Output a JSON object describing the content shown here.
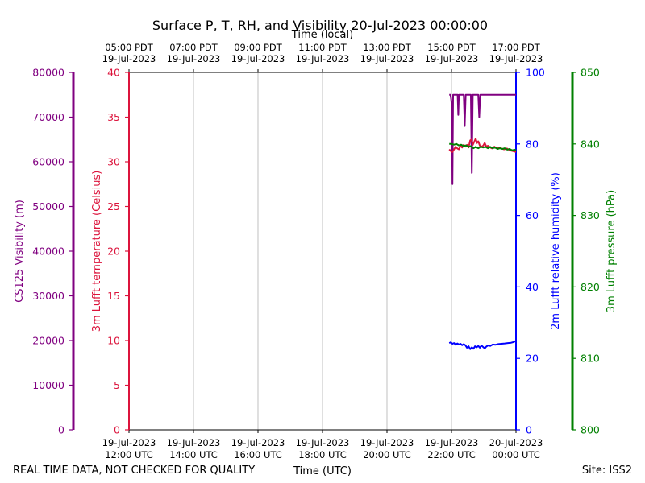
{
  "chart_data": {
    "type": "line",
    "title": "Surface P, T, RH, and Visibility 20-Jul-2023 00:00:00",
    "top_axis_title": "Time (local)",
    "xlabel": "Time (UTC)",
    "footer_left": "REAL TIME DATA, NOT CHECKED FOR QUALITY",
    "footer_right": "Site: ISS2",
    "x_range_hours": [
      12,
      24
    ],
    "x_ticks": [
      {
        "hour": 12,
        "utc_date": "19-Jul-2023",
        "utc_time": "12:00 UTC",
        "local_time": "05:00 PDT",
        "local_date": "19-Jul-2023"
      },
      {
        "hour": 14,
        "utc_date": "19-Jul-2023",
        "utc_time": "14:00 UTC",
        "local_time": "07:00 PDT",
        "local_date": "19-Jul-2023"
      },
      {
        "hour": 16,
        "utc_date": "19-Jul-2023",
        "utc_time": "16:00 UTC",
        "local_time": "09:00 PDT",
        "local_date": "19-Jul-2023"
      },
      {
        "hour": 18,
        "utc_date": "19-Jul-2023",
        "utc_time": "18:00 UTC",
        "local_time": "11:00 PDT",
        "local_date": "19-Jul-2023"
      },
      {
        "hour": 20,
        "utc_date": "19-Jul-2023",
        "utc_time": "20:00 UTC",
        "local_time": "13:00 PDT",
        "local_date": "19-Jul-2023"
      },
      {
        "hour": 22,
        "utc_date": "19-Jul-2023",
        "utc_time": "22:00 UTC",
        "local_time": "15:00 PDT",
        "local_date": "19-Jul-2023"
      },
      {
        "hour": 24,
        "utc_date": "20-Jul-2023",
        "utc_time": "00:00 UTC",
        "local_time": "17:00 PDT",
        "local_date": "19-Jul-2023"
      }
    ],
    "axes": {
      "visibility": {
        "label": "CS125 Visibility (m)",
        "color": "#800080",
        "range": [
          0,
          80000
        ],
        "ticks": [
          "0",
          "10000",
          "20000",
          "30000",
          "40000",
          "50000",
          "60000",
          "70000",
          "80000"
        ]
      },
      "temperature": {
        "label": "3m Lufft temperature (Celsius)",
        "color": "#dc143c",
        "range": [
          0,
          40
        ],
        "ticks": [
          "0",
          "5",
          "10",
          "15",
          "20",
          "25",
          "30",
          "35",
          "40"
        ]
      },
      "humidity": {
        "label": "2m Lufft relative humidity (%)",
        "color": "#0000ff",
        "range": [
          0,
          100
        ],
        "ticks": [
          "0",
          "20",
          "40",
          "60",
          "80",
          "100"
        ]
      },
      "pressure": {
        "label": "3m Lufft pressure (hPa)",
        "color": "#008000",
        "range": [
          800,
          850
        ],
        "ticks": [
          "800",
          "810",
          "820",
          "830",
          "840",
          "850"
        ]
      }
    },
    "series": [
      {
        "name": "Visibility",
        "axis": "visibility",
        "color": "#800080",
        "points": [
          [
            21.93,
            75000
          ],
          [
            21.97,
            75000
          ],
          [
            21.99,
            74000
          ],
          [
            22.01,
            72500
          ],
          [
            22.03,
            55000
          ],
          [
            22.05,
            75000
          ],
          [
            22.08,
            75000
          ],
          [
            22.13,
            75000
          ],
          [
            22.19,
            75000
          ],
          [
            22.21,
            70500
          ],
          [
            22.23,
            75000
          ],
          [
            22.3,
            75000
          ],
          [
            22.38,
            75000
          ],
          [
            22.41,
            68000
          ],
          [
            22.44,
            75000
          ],
          [
            22.55,
            75000
          ],
          [
            22.6,
            75000
          ],
          [
            22.63,
            57500
          ],
          [
            22.66,
            75000
          ],
          [
            22.75,
            75000
          ],
          [
            22.83,
            75000
          ],
          [
            22.86,
            70000
          ],
          [
            22.89,
            75000
          ],
          [
            23.0,
            75000
          ],
          [
            23.5,
            75000
          ],
          [
            24.0,
            75000
          ]
        ]
      },
      {
        "name": "Temperature",
        "axis": "temperature",
        "color": "#dc143c",
        "points": [
          [
            21.93,
            31.4
          ],
          [
            21.98,
            31.2
          ],
          [
            22.03,
            31.1
          ],
          [
            22.08,
            31.4
          ],
          [
            22.13,
            31.7
          ],
          [
            22.18,
            31.5
          ],
          [
            22.23,
            31.4
          ],
          [
            22.28,
            31.8
          ],
          [
            22.33,
            31.6
          ],
          [
            22.38,
            31.9
          ],
          [
            22.43,
            31.7
          ],
          [
            22.48,
            31.9
          ],
          [
            22.53,
            31.6
          ],
          [
            22.58,
            32.4
          ],
          [
            22.62,
            32.5
          ],
          [
            22.66,
            31.9
          ],
          [
            22.7,
            32.2
          ],
          [
            22.75,
            32.6
          ],
          [
            22.79,
            32.1
          ],
          [
            22.83,
            32.3
          ],
          [
            22.88,
            31.8
          ],
          [
            22.93,
            31.7
          ],
          [
            22.98,
            31.8
          ],
          [
            23.03,
            32.1
          ],
          [
            23.08,
            31.7
          ],
          [
            23.13,
            31.8
          ],
          [
            23.2,
            31.6
          ],
          [
            23.26,
            31.5
          ],
          [
            23.33,
            31.7
          ],
          [
            23.4,
            31.5
          ],
          [
            23.47,
            31.6
          ],
          [
            23.55,
            31.5
          ],
          [
            23.63,
            31.4
          ],
          [
            23.72,
            31.5
          ],
          [
            23.8,
            31.3
          ],
          [
            23.9,
            31.2
          ],
          [
            24.0,
            31.1
          ]
        ]
      },
      {
        "name": "Relative humidity",
        "axis": "humidity",
        "color": "#0000ff",
        "points": [
          [
            21.93,
            24.3
          ],
          [
            21.98,
            24.5
          ],
          [
            22.03,
            24.1
          ],
          [
            22.08,
            24.3
          ],
          [
            22.13,
            23.8
          ],
          [
            22.18,
            24.2
          ],
          [
            22.23,
            23.9
          ],
          [
            22.28,
            24.1
          ],
          [
            22.33,
            23.7
          ],
          [
            22.38,
            24.0
          ],
          [
            22.43,
            23.7
          ],
          [
            22.48,
            23.0
          ],
          [
            22.53,
            23.4
          ],
          [
            22.58,
            22.6
          ],
          [
            22.63,
            23.1
          ],
          [
            22.68,
            22.7
          ],
          [
            22.73,
            23.4
          ],
          [
            22.78,
            23.1
          ],
          [
            22.83,
            23.5
          ],
          [
            22.88,
            23.0
          ],
          [
            22.93,
            23.6
          ],
          [
            22.98,
            23.2
          ],
          [
            23.03,
            22.8
          ],
          [
            23.08,
            23.3
          ],
          [
            23.13,
            23.6
          ],
          [
            23.2,
            23.5
          ],
          [
            23.28,
            23.9
          ],
          [
            23.36,
            23.8
          ],
          [
            23.45,
            24.0
          ],
          [
            23.55,
            24.1
          ],
          [
            23.65,
            24.2
          ],
          [
            23.75,
            24.3
          ],
          [
            23.85,
            24.4
          ],
          [
            23.93,
            24.6
          ],
          [
            24.0,
            24.9
          ]
        ]
      },
      {
        "name": "Pressure",
        "axis": "pressure",
        "color": "#008000",
        "points": [
          [
            21.93,
            840.0
          ],
          [
            22.0,
            840.0
          ],
          [
            22.08,
            839.9
          ],
          [
            22.15,
            840.0
          ],
          [
            22.23,
            839.8
          ],
          [
            22.3,
            839.9
          ],
          [
            22.38,
            839.7
          ],
          [
            22.45,
            839.8
          ],
          [
            22.53,
            839.6
          ],
          [
            22.6,
            839.7
          ],
          [
            22.68,
            839.4
          ],
          [
            22.75,
            839.6
          ],
          [
            22.83,
            839.4
          ],
          [
            22.9,
            839.6
          ],
          [
            22.98,
            839.5
          ],
          [
            23.05,
            839.6
          ],
          [
            23.13,
            839.4
          ],
          [
            23.2,
            839.6
          ],
          [
            23.28,
            839.4
          ],
          [
            23.35,
            839.5
          ],
          [
            23.43,
            839.3
          ],
          [
            23.5,
            839.4
          ],
          [
            23.58,
            839.3
          ],
          [
            23.65,
            839.4
          ],
          [
            23.73,
            839.2
          ],
          [
            23.8,
            839.3
          ],
          [
            23.88,
            839.1
          ],
          [
            23.95,
            839.2
          ],
          [
            24.0,
            839.1
          ]
        ]
      }
    ]
  }
}
